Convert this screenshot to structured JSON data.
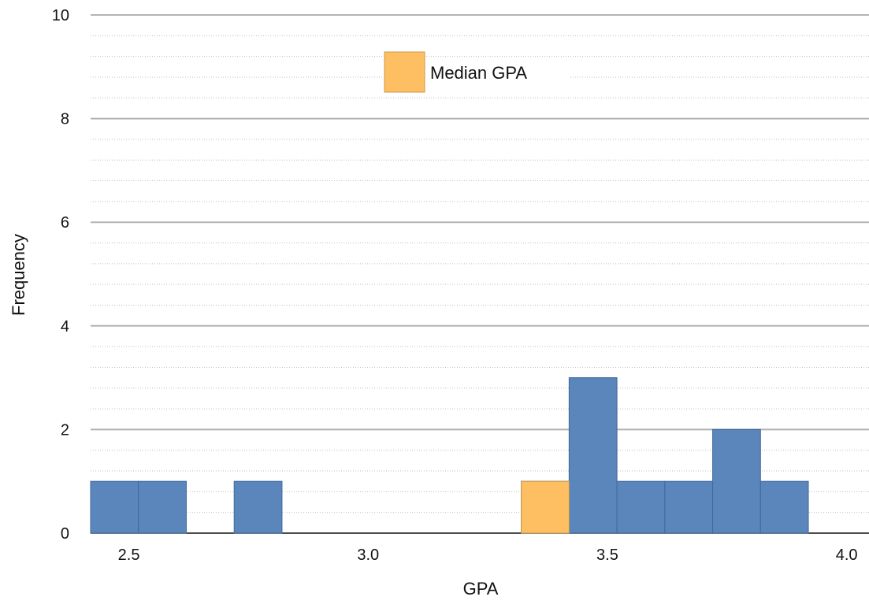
{
  "chart_data": {
    "type": "bar",
    "xlabel": "GPA",
    "ylabel": "Frequency",
    "xlim": [
      2.42,
      4.05
    ],
    "ylim": [
      0,
      10
    ],
    "x_ticks": [
      "2.5",
      "3.0",
      "3.5",
      "4.0"
    ],
    "y_ticks": [
      "0",
      "2",
      "4",
      "6",
      "8",
      "10"
    ],
    "bin_width": 0.1,
    "grid": "major and minor horizontal",
    "legend": "top-center",
    "series": [
      {
        "name": "",
        "color": "#5b86bc",
        "bins": [
          {
            "start": 2.42,
            "end": 2.52,
            "value": 1
          },
          {
            "start": 2.52,
            "end": 2.62,
            "value": 1
          },
          {
            "start": 2.72,
            "end": 2.82,
            "value": 1
          },
          {
            "start": 3.32,
            "end": 3.42,
            "value": 1
          },
          {
            "start": 3.42,
            "end": 3.52,
            "value": 3
          },
          {
            "start": 3.52,
            "end": 3.62,
            "value": 1
          },
          {
            "start": 3.62,
            "end": 3.72,
            "value": 1
          },
          {
            "start": 3.72,
            "end": 3.82,
            "value": 2
          },
          {
            "start": 3.82,
            "end": 3.92,
            "value": 1
          }
        ]
      },
      {
        "name": "Median GPA",
        "color": "#fdbf61",
        "bins": [
          {
            "start": 3.32,
            "end": 3.42,
            "value": 1
          }
        ]
      }
    ]
  }
}
